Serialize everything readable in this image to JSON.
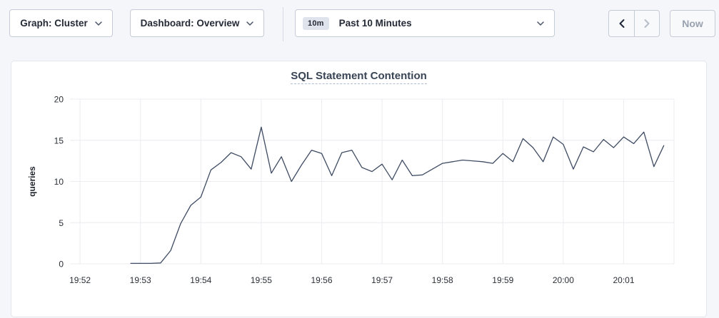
{
  "toolbar": {
    "graph_dropdown": {
      "label": "Graph: Cluster"
    },
    "dashboard_dropdown": {
      "label": "Dashboard: Overview"
    },
    "time_range": {
      "badge": "10m",
      "label": "Past 10 Minutes"
    },
    "now_button": "Now",
    "icons": {
      "dropdown": "chevron-down",
      "back": "chevron-left",
      "forward": "chevron-right"
    }
  },
  "colors": {
    "page_bg": "#f4f6fa",
    "card_border": "#e2e6ed",
    "control_border": "#c6cbd8",
    "text_dark": "#242a35",
    "title": "#394455",
    "disabled": "#b7bdc9",
    "badge_bg": "#dfe3ec",
    "gridline": "#ececf1",
    "series_line": "#3f4c63"
  },
  "chart_data": {
    "type": "line",
    "title": "SQL Statement Contention",
    "xlabel": "",
    "ylabel": "queries",
    "ylim": [
      0,
      20
    ],
    "yticks": [
      0,
      5,
      10,
      15,
      20
    ],
    "grid": true,
    "legend_position": "none",
    "x_domain": [
      "19:51:50",
      "20:01:50"
    ],
    "xticks": [
      "19:52",
      "19:53",
      "19:54",
      "19:55",
      "19:56",
      "19:57",
      "19:58",
      "19:59",
      "20:00",
      "20:01"
    ],
    "series": [
      {
        "name": "queries",
        "color": "#3f4c63",
        "x": [
          "19:52:50",
          "19:53:00",
          "19:53:10",
          "19:53:20",
          "19:53:30",
          "19:53:40",
          "19:53:50",
          "19:54:00",
          "19:54:10",
          "19:54:20",
          "19:54:30",
          "19:54:40",
          "19:54:50",
          "19:55:00",
          "19:55:10",
          "19:55:20",
          "19:55:30",
          "19:55:40",
          "19:55:50",
          "19:56:00",
          "19:56:10",
          "19:56:20",
          "19:56:30",
          "19:56:40",
          "19:56:50",
          "19:57:00",
          "19:57:10",
          "19:57:20",
          "19:57:30",
          "19:57:40",
          "19:57:50",
          "19:58:00",
          "19:58:10",
          "19:58:20",
          "19:58:30",
          "19:58:40",
          "19:58:50",
          "19:59:00",
          "19:59:10",
          "19:59:20",
          "19:59:30",
          "19:59:40",
          "19:59:50",
          "20:00:00",
          "20:00:10",
          "20:00:20",
          "20:00:30",
          "20:00:40",
          "20:00:50",
          "20:01:00",
          "20:01:10",
          "20:01:20",
          "20:01:30",
          "20:01:40"
        ],
        "values": [
          0.05,
          0.05,
          0.05,
          0.1,
          1.6,
          4.9,
          7.1,
          8.1,
          11.4,
          12.3,
          13.5,
          13.0,
          11.5,
          16.6,
          11.0,
          13.0,
          10.0,
          12.0,
          13.8,
          13.4,
          10.7,
          13.5,
          13.8,
          11.7,
          11.2,
          12.1,
          10.2,
          12.6,
          10.7,
          10.8,
          11.5,
          12.2,
          12.4,
          12.6,
          12.5,
          12.4,
          12.2,
          13.4,
          12.4,
          15.2,
          14.1,
          12.4,
          15.4,
          14.5,
          11.5,
          14.2,
          13.6,
          15.1,
          14.1,
          15.4,
          14.6,
          16.0,
          11.8,
          14.4
        ]
      }
    ]
  }
}
